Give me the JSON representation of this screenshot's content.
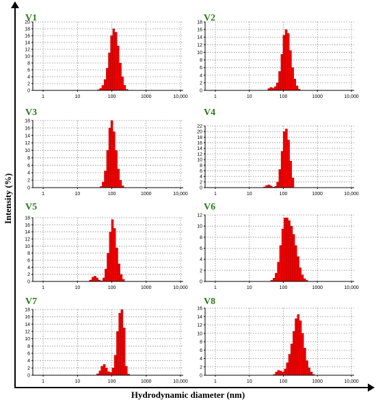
{
  "figure": {
    "y_axis_label": "Intensity (%)",
    "x_axis_label": "Hydrodynamic diameter (nm)",
    "colors": {
      "bars": "#ee0000",
      "bar_edge": "#880000",
      "panel_label": "#2a7a1a",
      "axis": "#000000"
    }
  },
  "chart_data": [
    {
      "type": "bar",
      "title": "V1",
      "xscale": "log",
      "xlim": [
        0.5,
        12000
      ],
      "ylim": [
        0,
        20
      ],
      "x_ticks": [
        "1",
        "10",
        "100",
        "1000",
        "10,000"
      ],
      "y_ticks": [
        0,
        2,
        4,
        6,
        8,
        10,
        12,
        14,
        16,
        18,
        20
      ],
      "x": [
        38,
        44,
        51,
        59,
        68,
        79,
        91,
        106,
        122,
        142,
        164,
        190,
        220,
        255
      ],
      "values": [
        0.2,
        0.6,
        1.5,
        3.2,
        6.5,
        11.0,
        16.0,
        18.0,
        17.0,
        13.0,
        8.0,
        4.0,
        1.5,
        0.3
      ]
    },
    {
      "type": "bar",
      "title": "V2",
      "xscale": "log",
      "xlim": [
        0.5,
        12000
      ],
      "ylim": [
        0,
        18
      ],
      "x_ticks": [
        "1",
        "10",
        "100",
        "1000",
        "10,000"
      ],
      "y_ticks": [
        0,
        2,
        4,
        6,
        8,
        10,
        12,
        14,
        16,
        18
      ],
      "x": [
        35,
        40,
        47,
        54,
        62,
        72,
        84,
        97,
        112,
        130,
        150,
        174,
        202,
        234,
        271
      ],
      "values": [
        0.5,
        0.8,
        0.6,
        1.0,
        2.0,
        5.0,
        9.5,
        14.5,
        16.0,
        15.0,
        10.5,
        6.0,
        3.0,
        1.2,
        0.3
      ]
    },
    {
      "type": "bar",
      "title": "V3",
      "xscale": "log",
      "xlim": [
        0.5,
        12000
      ],
      "ylim": [
        0,
        18
      ],
      "x_ticks": [
        "1",
        "10",
        "100",
        "1000",
        "10,000"
      ],
      "y_ticks": [
        0,
        2,
        4,
        6,
        8,
        10,
        12,
        14,
        16,
        18
      ],
      "x": [
        45,
        52,
        60,
        70,
        81,
        93,
        108,
        125,
        145,
        168,
        194
      ],
      "values": [
        0.3,
        1.5,
        4.5,
        10.0,
        16.0,
        18.0,
        15.0,
        10.0,
        5.0,
        2.0,
        0.5
      ]
    },
    {
      "type": "bar",
      "title": "V4",
      "xscale": "log",
      "xlim": [
        0.5,
        12000
      ],
      "ylim": [
        0,
        22
      ],
      "x_ticks": [
        "1",
        "10",
        "100",
        "1000",
        "10,000"
      ],
      "y_ticks": [
        0,
        2,
        4,
        6,
        8,
        10,
        12,
        14,
        16,
        18,
        20,
        22
      ],
      "x": [
        26,
        30,
        35,
        41,
        47,
        55,
        63,
        73,
        85,
        98,
        114,
        132,
        153,
        177
      ],
      "values": [
        0.3,
        0.8,
        1.0,
        0.6,
        0.2,
        0.5,
        2.0,
        6.5,
        13.0,
        20.0,
        21.0,
        17.0,
        9.5,
        3.5
      ]
    },
    {
      "type": "bar",
      "title": "V5",
      "xscale": "log",
      "xlim": [
        0.5,
        12000
      ],
      "ylim": [
        0,
        18
      ],
      "x_ticks": [
        "1",
        "10",
        "100",
        "1000",
        "10,000"
      ],
      "y_ticks": [
        0,
        2,
        4,
        6,
        8,
        10,
        12,
        14,
        16,
        18
      ],
      "x": [
        22,
        26,
        30,
        35,
        40,
        46,
        54,
        62,
        72,
        84,
        97,
        112,
        130,
        151,
        175,
        203
      ],
      "values": [
        0.4,
        1.2,
        1.5,
        1.0,
        0.4,
        0.2,
        1.0,
        3.5,
        8.0,
        14.0,
        17.5,
        15.0,
        9.5,
        5.0,
        2.0,
        0.6
      ]
    },
    {
      "type": "bar",
      "title": "V6",
      "xscale": "log",
      "xlim": [
        0.5,
        12000
      ],
      "ylim": [
        0,
        12
      ],
      "x_ticks": [
        "1",
        "10",
        "100",
        "1000",
        "10,000"
      ],
      "y_ticks": [
        0,
        2,
        4,
        6,
        8,
        10,
        12
      ],
      "x": [
        42,
        49,
        57,
        66,
        77,
        89,
        103,
        120,
        139,
        161,
        187,
        217,
        251,
        291,
        338,
        392,
        455
      ],
      "values": [
        0.2,
        0.6,
        1.5,
        3.5,
        6.5,
        9.5,
        11.5,
        11.5,
        11.0,
        10.0,
        8.5,
        6.5,
        4.5,
        2.5,
        1.2,
        0.5,
        0.2
      ]
    },
    {
      "type": "bar",
      "title": "V7",
      "xscale": "log",
      "xlim": [
        0.5,
        12000
      ],
      "ylim": [
        0,
        18
      ],
      "x_ticks": [
        "1",
        "10",
        "100",
        "1000",
        "10,000"
      ],
      "y_ticks": [
        0,
        2,
        4,
        6,
        8,
        10,
        12,
        14,
        16,
        18
      ],
      "x": [
        36,
        42,
        48,
        56,
        65,
        75,
        87,
        101,
        117,
        136,
        158,
        183,
        212,
        246,
        285
      ],
      "values": [
        0.4,
        1.2,
        2.5,
        3.0,
        2.0,
        1.0,
        0.8,
        2.0,
        5.5,
        12.0,
        17.0,
        18.0,
        13.0,
        2.5,
        0.3
      ]
    },
    {
      "type": "bar",
      "title": "V8",
      "xscale": "log",
      "xlim": [
        0.5,
        12000
      ],
      "ylim": [
        0,
        16
      ],
      "x_ticks": [
        "1",
        "10",
        "100",
        "1000",
        "10,000"
      ],
      "y_ticks": [
        0,
        2,
        4,
        6,
        8,
        10,
        12,
        14,
        16
      ],
      "x": [
        50,
        58,
        67,
        78,
        90,
        105,
        121,
        141,
        163,
        189,
        219,
        254,
        295,
        342,
        396,
        460,
        533,
        618,
        717
      ],
      "values": [
        0.2,
        0.8,
        1.2,
        1.0,
        0.8,
        1.5,
        3.0,
        5.0,
        7.5,
        10.5,
        13.5,
        14.5,
        13.0,
        10.0,
        6.5,
        3.5,
        1.8,
        0.8,
        0.2
      ]
    }
  ]
}
